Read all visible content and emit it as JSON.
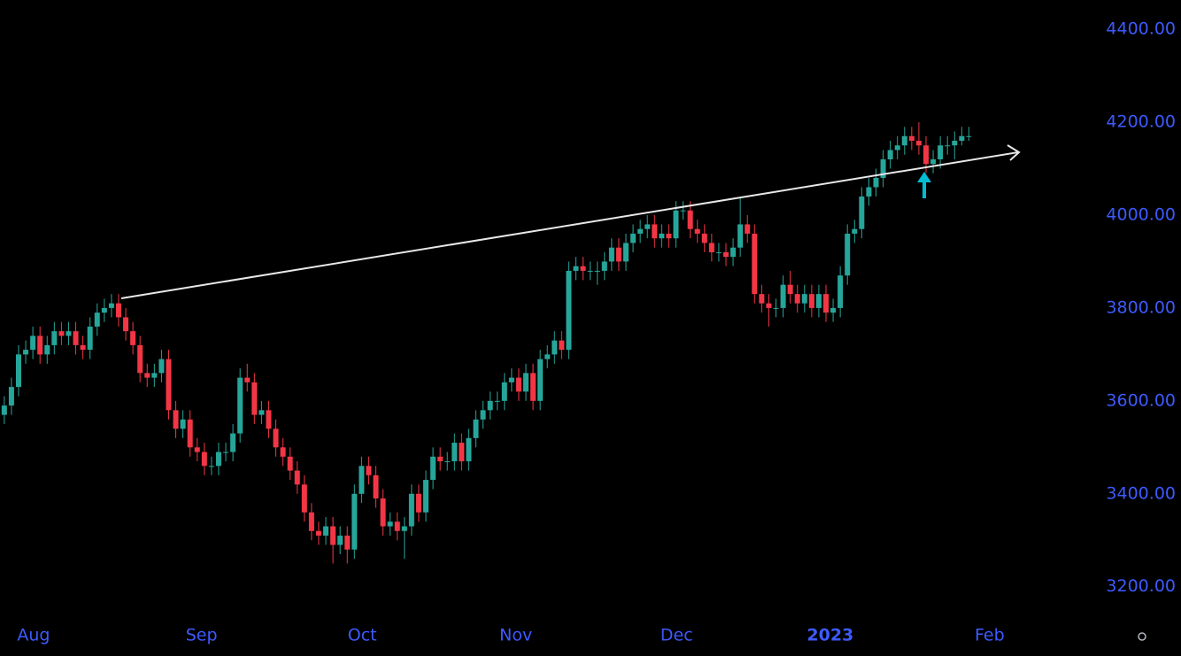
{
  "chart_data": {
    "type": "candlestick",
    "x": [
      0,
      1,
      2,
      3,
      4,
      5,
      6,
      7,
      8,
      9,
      10,
      11,
      12,
      13,
      14,
      15,
      16,
      17,
      18,
      19,
      20,
      21,
      22,
      23,
      24,
      25,
      26,
      27,
      28,
      29,
      30,
      31,
      32,
      33,
      34,
      35,
      36,
      37,
      38,
      39,
      40,
      41,
      42,
      43,
      44,
      45,
      46,
      47,
      48,
      49,
      50,
      51,
      52,
      53,
      54,
      55,
      56,
      57,
      58,
      59,
      60,
      61,
      62,
      63,
      64,
      65,
      66,
      67,
      68,
      69,
      70,
      71,
      72,
      73,
      74,
      75,
      76,
      77,
      78,
      79,
      80,
      81,
      82,
      83,
      84,
      85,
      86,
      87,
      88,
      89,
      90,
      91,
      92,
      93,
      94,
      95,
      96,
      97,
      98,
      99,
      100,
      101,
      102,
      103,
      104,
      105,
      106,
      107,
      108,
      109,
      110,
      111,
      112,
      113,
      114,
      115,
      116,
      117,
      118,
      119,
      120,
      121,
      122,
      123,
      124,
      125,
      126,
      127,
      128,
      129,
      130,
      131,
      132,
      133,
      134,
      135
    ],
    "open": [
      3570,
      3590,
      3630,
      3700,
      3710,
      3740,
      3700,
      3720,
      3750,
      3740,
      3750,
      3720,
      3710,
      3760,
      3790,
      3800,
      3810,
      3780,
      3750,
      3720,
      3660,
      3650,
      3660,
      3690,
      3580,
      3540,
      3560,
      3500,
      3490,
      3460,
      3460,
      3490,
      3490,
      3530,
      3650,
      3640,
      3570,
      3580,
      3540,
      3500,
      3480,
      3450,
      3420,
      3360,
      3320,
      3310,
      3330,
      3290,
      3310,
      3280,
      3400,
      3460,
      3440,
      3390,
      3330,
      3340,
      3320,
      3330,
      3400,
      3360,
      3430,
      3480,
      3470,
      3470,
      3510,
      3470,
      3520,
      3560,
      3580,
      3600,
      3600,
      3640,
      3650,
      3620,
      3660,
      3600,
      3690,
      3700,
      3730,
      3710,
      3880,
      3890,
      3880,
      3880,
      3880,
      3900,
      3930,
      3900,
      3940,
      3960,
      3970,
      3980,
      3950,
      3960,
      3950,
      4010,
      4010,
      3970,
      3960,
      3940,
      3920,
      3920,
      3910,
      3930,
      3980,
      3960,
      3830,
      3810,
      3800,
      3800,
      3850,
      3830,
      3810,
      3830,
      3800,
      3830,
      3790,
      3800,
      3870,
      3960,
      3970,
      4040,
      4060,
      4080,
      4120,
      4140,
      4150,
      4170,
      4160,
      4150,
      4110,
      4120,
      4150,
      4150,
      4160,
      4170
    ],
    "high": [
      3610,
      3650,
      3720,
      3730,
      3760,
      3760,
      3740,
      3770,
      3770,
      3770,
      3770,
      3740,
      3780,
      3810,
      3820,
      3830,
      3830,
      3800,
      3770,
      3740,
      3680,
      3680,
      3710,
      3710,
      3600,
      3580,
      3580,
      3520,
      3510,
      3480,
      3510,
      3510,
      3550,
      3670,
      3680,
      3660,
      3600,
      3600,
      3560,
      3520,
      3500,
      3470,
      3440,
      3380,
      3340,
      3350,
      3350,
      3330,
      3330,
      3420,
      3480,
      3480,
      3460,
      3410,
      3360,
      3360,
      3350,
      3420,
      3420,
      3450,
      3500,
      3500,
      3490,
      3530,
      3530,
      3540,
      3580,
      3600,
      3620,
      3620,
      3660,
      3670,
      3670,
      3680,
      3680,
      3710,
      3720,
      3750,
      3750,
      3900,
      3910,
      3910,
      3900,
      3900,
      3920,
      3950,
      3950,
      3960,
      3980,
      3990,
      4000,
      4000,
      3980,
      3980,
      4030,
      4030,
      4030,
      3990,
      3980,
      3960,
      3940,
      3940,
      3950,
      4040,
      4000,
      3980,
      3850,
      3830,
      3820,
      3870,
      3880,
      3850,
      3850,
      3850,
      3850,
      3850,
      3820,
      3890,
      3980,
      3990,
      4060,
      4080,
      4100,
      4140,
      4160,
      4170,
      4190,
      4190,
      4200,
      4170,
      4140,
      4170,
      4170,
      4180,
      4190,
      4190
    ],
    "low": [
      3550,
      3570,
      3610,
      3680,
      3690,
      3680,
      3680,
      3700,
      3720,
      3720,
      3700,
      3690,
      3690,
      3740,
      3770,
      3780,
      3760,
      3730,
      3700,
      3640,
      3630,
      3630,
      3640,
      3560,
      3520,
      3520,
      3480,
      3470,
      3440,
      3440,
      3440,
      3470,
      3470,
      3510,
      3620,
      3550,
      3550,
      3520,
      3480,
      3460,
      3430,
      3400,
      3340,
      3300,
      3290,
      3290,
      3250,
      3270,
      3250,
      3260,
      3380,
      3420,
      3370,
      3310,
      3310,
      3300,
      3260,
      3310,
      3340,
      3340,
      3410,
      3450,
      3450,
      3450,
      3450,
      3450,
      3500,
      3540,
      3560,
      3580,
      3580,
      3620,
      3600,
      3600,
      3580,
      3580,
      3670,
      3680,
      3690,
      3690,
      3860,
      3860,
      3860,
      3850,
      3860,
      3880,
      3880,
      3880,
      3920,
      3940,
      3950,
      3930,
      3930,
      3930,
      3930,
      3990,
      3950,
      3940,
      3920,
      3900,
      3900,
      3890,
      3890,
      3910,
      3940,
      3810,
      3790,
      3760,
      3780,
      3780,
      3810,
      3790,
      3790,
      3780,
      3780,
      3770,
      3770,
      3780,
      3850,
      3940,
      3950,
      4020,
      4040,
      4060,
      4100,
      4120,
      4130,
      4140,
      4130,
      4090,
      4090,
      4100,
      4130,
      4120,
      4150,
      4160
    ],
    "close": [
      3590,
      3630,
      3700,
      3710,
      3740,
      3700,
      3720,
      3750,
      3740,
      3750,
      3720,
      3710,
      3760,
      3790,
      3800,
      3810,
      3780,
      3750,
      3720,
      3660,
      3650,
      3660,
      3690,
      3580,
      3540,
      3560,
      3500,
      3490,
      3460,
      3460,
      3490,
      3490,
      3530,
      3650,
      3640,
      3570,
      3580,
      3540,
      3500,
      3480,
      3450,
      3420,
      3360,
      3320,
      3310,
      3330,
      3290,
      3310,
      3280,
      3400,
      3460,
      3440,
      3390,
      3330,
      3340,
      3320,
      3330,
      3400,
      3360,
      3430,
      3480,
      3470,
      3470,
      3510,
      3470,
      3520,
      3560,
      3580,
      3600,
      3600,
      3640,
      3650,
      3620,
      3660,
      3600,
      3690,
      3700,
      3730,
      3710,
      3880,
      3890,
      3880,
      3880,
      3880,
      3900,
      3930,
      3900,
      3940,
      3960,
      3970,
      3980,
      3950,
      3960,
      3950,
      4010,
      4010,
      3970,
      3960,
      3940,
      3920,
      3920,
      3910,
      3930,
      3980,
      3960,
      3830,
      3810,
      3800,
      3800,
      3850,
      3830,
      3810,
      3830,
      3800,
      3830,
      3790,
      3800,
      3870,
      3960,
      3970,
      4040,
      4060,
      4080,
      4120,
      4140,
      4150,
      4170,
      4160,
      4150,
      4110,
      4120,
      4150,
      4150,
      4160,
      4170,
      4170
    ],
    "up_color": "#26a69a",
    "down_color": "#f23645",
    "xlim": [
      -0.6,
      151.8
    ],
    "xticks": [
      {
        "value": 4.1,
        "label": "Aug"
      },
      {
        "value": 27.6,
        "label": "Sep"
      },
      {
        "value": 50.1,
        "label": "Oct"
      },
      {
        "value": 71.6,
        "label": "Nov"
      },
      {
        "value": 94.1,
        "label": "Dec"
      },
      {
        "value": 115.6,
        "label": "2023"
      },
      {
        "value": 137.9,
        "label": "Feb"
      }
    ],
    "ylim": [
      3129,
      4463
    ],
    "yticks": [
      {
        "value": 3200,
        "label": "3200.00"
      },
      {
        "value": 3400,
        "label": "3400.00"
      },
      {
        "value": 3600,
        "label": "3600.00"
      },
      {
        "value": 3800,
        "label": "3800.00"
      },
      {
        "value": 4000,
        "label": "4000.00"
      },
      {
        "value": 4200,
        "label": "4200.00"
      },
      {
        "value": 4400,
        "label": "4400.00"
      }
    ],
    "axis_color": "#3d5afe",
    "grid": false
  }
}
